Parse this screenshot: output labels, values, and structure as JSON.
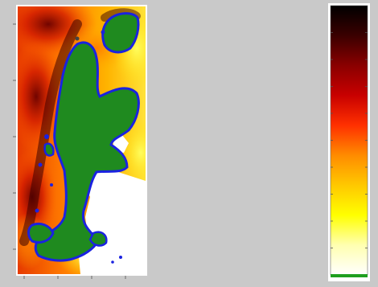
{
  "figure": {
    "background": "#c9c9c9",
    "panel_frame": "#ffffff",
    "axis_color": "#555555"
  },
  "chart_data": [
    {
      "type": "heatmap",
      "title": "",
      "xlabel": "",
      "ylabel": "",
      "grid": false,
      "legend": "none",
      "colormap": "hot (reversed)",
      "y_tick_count": 5,
      "x_tick_count": 4,
      "land_mask_color": "#1f8a1f",
      "coast_outline_color": "#1a22e0",
      "no_data_color": "#ffffff"
    },
    {
      "type": "colorbar",
      "title": "",
      "orientation": "vertical",
      "stops": [
        "#ffffff",
        "#ffffb0",
        "#ffff00",
        "#ffc800",
        "#ff8c00",
        "#ff3000",
        "#c80000",
        "#8a0000",
        "#3a0000",
        "#000000"
      ],
      "tick_count": 9,
      "extension_color": "#1f9f1f"
    }
  ]
}
